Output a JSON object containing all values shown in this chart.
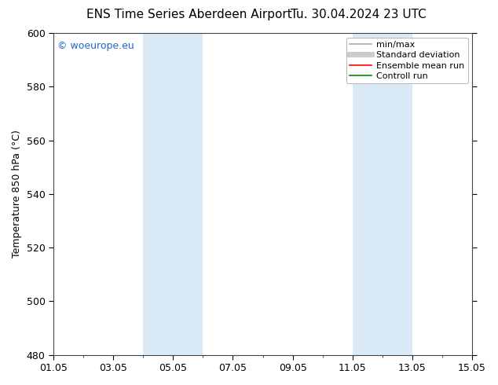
{
  "title_left": "ENS Time Series Aberdeen Airport",
  "title_right": "Tu. 30.04.2024 23 UTC",
  "ylabel": "Temperature 850 hPa (°C)",
  "ylim": [
    480,
    600
  ],
  "yticks": [
    480,
    500,
    520,
    540,
    560,
    580,
    600
  ],
  "xlim": [
    0,
    14
  ],
  "xtick_labels": [
    "01.05",
    "03.05",
    "05.05",
    "07.05",
    "09.05",
    "11.05",
    "13.05",
    "15.05"
  ],
  "xtick_positions": [
    0,
    2,
    4,
    6,
    8,
    10,
    12,
    14
  ],
  "shade_bands": [
    {
      "xmin": 3.0,
      "xmax": 5.0,
      "color": "#daeaf7"
    },
    {
      "xmin": 10.0,
      "xmax": 12.0,
      "color": "#daeaf7"
    }
  ],
  "legend_items": [
    {
      "label": "min/max",
      "color": "#aaaaaa",
      "lw": 1.2,
      "type": "line"
    },
    {
      "label": "Standard deviation",
      "color": "#cccccc",
      "lw": 5,
      "type": "line"
    },
    {
      "label": "Ensemble mean run",
      "color": "#ff0000",
      "lw": 1.2,
      "type": "line"
    },
    {
      "label": "Controll run",
      "color": "#008800",
      "lw": 1.2,
      "type": "line"
    }
  ],
  "watermark": "© woeurope.eu",
  "watermark_color": "#2266cc",
  "background_color": "#ffffff",
  "title_fontsize": 11,
  "axis_fontsize": 9,
  "tick_fontsize": 9,
  "legend_fontsize": 8
}
